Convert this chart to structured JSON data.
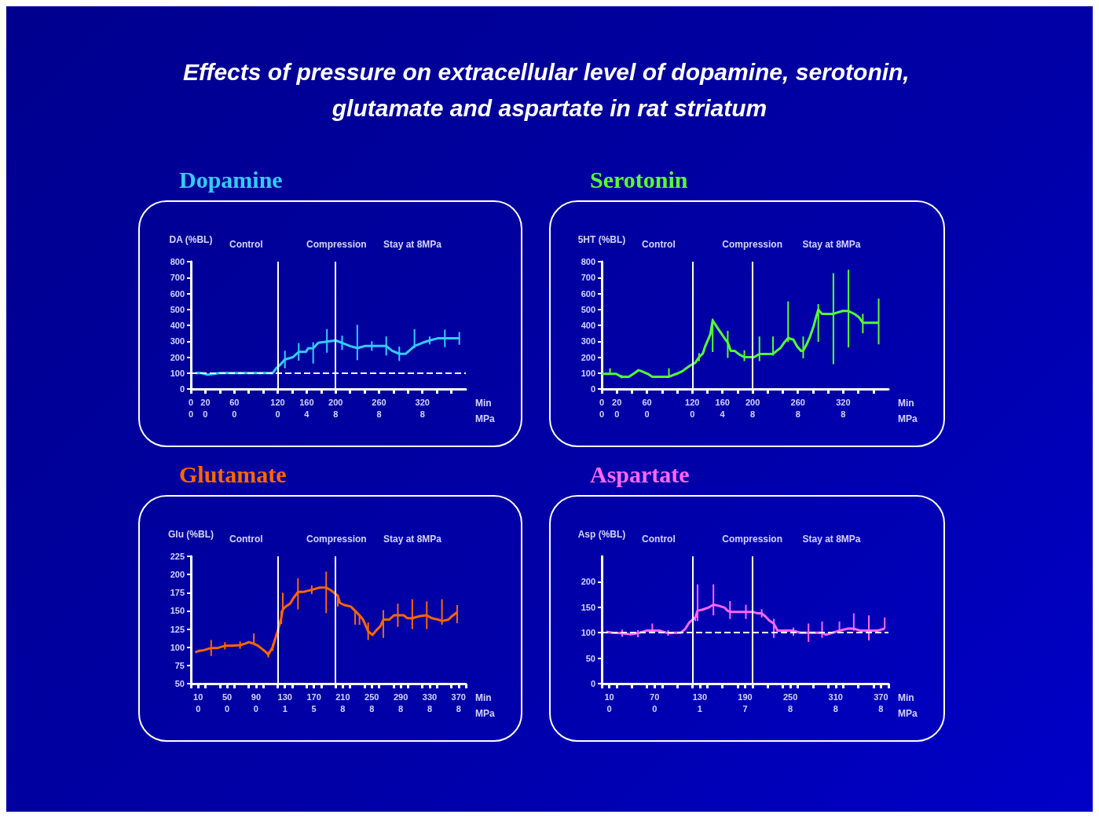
{
  "chart_data": [
    {
      "type": "other",
      "title": "Effects of pressure on extracellular level of dopamine, serotonin, glutamate and aspartate in rat striatum"
    },
    {
      "type": "line",
      "title": "Dopamine",
      "ylabel": "DA (%BL)",
      "xlabel": "Min\nMPa",
      "annotations": [
        "Control",
        "Compression",
        "Stay at 8MPa",
        "0",
        "0",
        "0",
        "0",
        "4",
        "8",
        "8",
        "8"
      ],
      "xlim": [
        0,
        380
      ],
      "xticks": [
        0,
        20,
        {
          "value": 40,
          "label": null
        },
        60,
        {
          "value": 80,
          "label": null
        },
        {
          "value": 100,
          "label": null
        },
        120,
        {
          "value": 140,
          "label": null
        },
        160,
        {
          "value": 180,
          "label": null
        },
        200,
        {
          "value": 220,
          "label": null
        },
        {
          "value": 240,
          "label": null
        },
        260,
        {
          "value": 280,
          "label": null
        },
        {
          "value": 300,
          "label": null
        },
        320,
        {
          "value": 340,
          "label": null
        },
        {
          "value": 360,
          "label": null
        }
      ],
      "ylim": [
        0,
        800
      ],
      "yticks": [
        0,
        100,
        200,
        300,
        400,
        500,
        600,
        700,
        800
      ],
      "ref_lines": [
        {
          "axis": "x",
          "value": 120,
          "color": "#ffffff"
        },
        {
          "axis": "x",
          "value": 200,
          "color": "#ffffff"
        },
        {
          "axis": "y",
          "value": 100,
          "color": "#ffffff",
          "line_style": "dashed"
        }
      ],
      "series": [
        {
          "color": "#33ccff",
          "x": [
            6,
            15,
            23,
            32,
            39,
            50,
            60,
            69,
            78,
            88,
            97,
            106,
            113,
            118,
            123,
            130,
            141,
            149,
            159,
            162,
            169,
            176,
            188,
            200,
            209,
            220,
            230,
            241,
            250,
            260,
            270,
            278,
            288,
            297,
            306,
            309,
            320,
            330,
            341,
            351,
            371
          ],
          "values": [
            100,
            100,
            90,
            95,
            100,
            100,
            100,
            100,
            100,
            100,
            100,
            100,
            100,
            130,
            150,
            185,
            200,
            233,
            233,
            255,
            255,
            290,
            297,
            305,
            290,
            270,
            257,
            270,
            270,
            270,
            270,
            240,
            221,
            221,
            257,
            270,
            290,
            305,
            318,
            318,
            318
          ],
          "errors": [
            null,
            null,
            null,
            null,
            null,
            null,
            null,
            null,
            null,
            null,
            null,
            null,
            null,
            null,
            null,
            55,
            null,
            55,
            null,
            null,
            [
              160,
              293
            ],
            null,
            [
              228,
              376
            ],
            null,
            45,
            null,
            [
              181,
              403
            ],
            null,
            30,
            null,
            60,
            null,
            45,
            null,
            null,
            [
              257,
              376
            ],
            null,
            25,
            null,
            55,
            40
          ]
        }
      ]
    },
    {
      "type": "line",
      "title": "Serotonin",
      "ylabel": "5HT (%BL)",
      "xlabel": "Min\nMPa",
      "annotations": [
        "Control",
        "Compression",
        "Stay at 8MPa",
        "0",
        "0",
        "0",
        "0",
        "4",
        "8",
        "8",
        "8"
      ],
      "xlim": [
        0,
        380
      ],
      "xticks": [
        0,
        20,
        {
          "value": 40,
          "label": null
        },
        60,
        {
          "value": 80,
          "label": null
        },
        {
          "value": 100,
          "label": null
        },
        120,
        {
          "value": 140,
          "label": null
        },
        160,
        {
          "value": 180,
          "label": null
        },
        200,
        {
          "value": 220,
          "label": null
        },
        {
          "value": 240,
          "label": null
        },
        260,
        {
          "value": 280,
          "label": null
        },
        {
          "value": 300,
          "label": null
        },
        320,
        {
          "value": 340,
          "label": null
        },
        {
          "value": 360,
          "label": null
        }
      ],
      "ylim": [
        0,
        800
      ],
      "yticks": [
        0,
        100,
        200,
        300,
        400,
        500,
        600,
        700,
        800
      ],
      "ref_lines": [
        {
          "axis": "x",
          "value": 120,
          "color": "#ffffff"
        },
        {
          "axis": "x",
          "value": 200,
          "color": "#ffffff"
        }
      ],
      "series": [
        {
          "color": "#55ff33",
          "x": [
            0,
            11,
            19,
            26,
            36,
            42,
            49,
            54,
            61,
            67,
            79,
            89,
            99,
            107,
            112,
            117,
            124,
            129,
            134,
            137,
            141,
            144,
            147,
            154,
            159,
            164,
            167,
            171,
            176,
            182,
            189,
            196,
            202,
            209,
            219,
            227,
            232,
            237,
            242,
            247,
            254,
            259,
            264,
            267,
            271,
            276,
            281,
            284,
            287,
            292,
            307,
            319,
            327,
            336,
            341,
            346,
            356,
            367
          ],
          "values": [
            95,
            95,
            95,
            77,
            77,
            95,
            118,
            109,
            95,
            77,
            77,
            77,
            95,
            112,
            130,
            147,
            165,
            200,
            223,
            267,
            310,
            345,
            430,
            380,
            345,
            310,
            293,
            240,
            240,
            218,
            200,
            200,
            200,
            220,
            220,
            220,
            240,
            258,
            293,
            320,
            310,
            267,
            240,
            240,
            275,
            328,
            398,
            450,
            498,
            472,
            472,
            490,
            490,
            468,
            450,
            416,
            416,
            416
          ],
          "errors": [
            null,
            [
              95,
              130
            ],
            null,
            10,
            null,
            null,
            null,
            null,
            null,
            null,
            null,
            [
              77,
              130
            ],
            null,
            null,
            null,
            null,
            null,
            25,
            null,
            null,
            null,
            null,
            [
              232,
              442
            ],
            null,
            null,
            null,
            [
              195,
              365
            ],
            null,
            null,
            null,
            [
              175,
              243
            ],
            null,
            null,
            [
              175,
              330
            ],
            null,
            [
              210,
              330
            ],
            null,
            null,
            null,
            [
              295,
              550
            ],
            null,
            null,
            null,
            [
              193,
              330
            ],
            null,
            null,
            null,
            null,
            [
              296,
              533
            ],
            null,
            [
              156,
              728
            ],
            null,
            [
              261,
              749
            ],
            null,
            null,
            [
              350,
              472
            ],
            null,
            [
              280,
              568
            ]
          ]
        }
      ]
    },
    {
      "type": "line",
      "title": "Glutamate",
      "ylabel": "Glu (%BL)",
      "xlabel": "Min\nMPa",
      "annotations": [
        "Control",
        "Compression",
        "Stay at 8MPa",
        "0",
        "0",
        "0",
        "1",
        "5",
        "8",
        "8",
        "8",
        "8",
        "8"
      ],
      "xlim": [
        0,
        380
      ],
      "xticks": [
        {
          "value": 0,
          "label": null
        },
        10,
        {
          "value": 20,
          "label": null
        },
        {
          "value": 40,
          "label": null
        },
        50,
        {
          "value": 60,
          "label": null
        },
        {
          "value": 80,
          "label": null
        },
        90,
        {
          "value": 100,
          "label": null
        },
        {
          "value": 120,
          "label": null
        },
        130,
        {
          "value": 140,
          "label": null
        },
        {
          "value": 160,
          "label": null
        },
        170,
        {
          "value": 180,
          "label": null
        },
        {
          "value": 200,
          "label": null
        },
        210,
        {
          "value": 220,
          "label": null
        },
        {
          "value": 240,
          "label": null
        },
        250,
        {
          "value": 260,
          "label": null
        },
        {
          "value": 280,
          "label": null
        },
        290,
        {
          "value": 300,
          "label": null
        },
        {
          "value": 320,
          "label": null
        },
        330,
        {
          "value": 340,
          "label": null
        },
        {
          "value": 360,
          "label": null
        },
        370,
        {
          "value": 380,
          "label": null
        }
      ],
      "ylim": [
        50,
        225
      ],
      "yticks": [
        50,
        75,
        100,
        125,
        150,
        175,
        200,
        225
      ],
      "ref_lines": [
        {
          "axis": "x",
          "value": 120,
          "color": "#ffffff"
        },
        {
          "axis": "x",
          "value": 200,
          "color": "#ffffff"
        }
      ],
      "series": [
        {
          "color": "#ff6600",
          "x": [
            6,
            11,
            18,
            28,
            37,
            47,
            57,
            68,
            75,
            80,
            87,
            93,
            98,
            103,
            107,
            113,
            121,
            125,
            127,
            131,
            137,
            142,
            148,
            155,
            167,
            178,
            187,
            194,
            203,
            206,
            212,
            221,
            227,
            233,
            238,
            245,
            251,
            256,
            262,
            266,
            274,
            281,
            286,
            294,
            299,
            306,
            317,
            326,
            333,
            342,
            347,
            356,
            361,
            368
          ],
          "values": [
            93,
            95,
            96,
            99,
            99,
            102,
            102,
            103,
            105,
            107,
            105,
            102,
            98,
            94,
            90,
            100,
            126,
            141,
            152,
            156,
            160,
            168,
            176,
            176,
            179,
            182,
            182,
            178,
            171,
            161,
            158,
            156,
            150,
            144,
            138,
            122,
            117,
            123,
            129,
            138,
            138,
            144,
            144,
            144,
            140,
            140,
            143,
            144,
            140,
            138,
            136,
            138,
            143,
            148
          ],
          "errors": [
            null,
            null,
            null,
            11,
            null,
            5,
            null,
            5,
            null,
            null,
            [
              105,
              119
            ],
            null,
            null,
            null,
            4,
            5,
            7,
            9,
            [
              152,
              175
            ],
            null,
            null,
            null,
            [
              152,
              195
            ],
            null,
            6,
            null,
            [
              147,
              204
            ],
            null,
            [
              156,
              172
            ],
            null,
            null,
            null,
            [
              131,
              150
            ],
            [
              131,
              144
            ],
            null,
            12,
            null,
            null,
            null,
            [
              113,
              151
            ],
            null,
            null,
            16,
            null,
            null,
            [
              125,
              166
            ],
            null,
            [
              125,
              163
            ],
            null,
            null,
            [
              131,
              166
            ],
            null,
            null,
            [
              133,
              158
            ]
          ]
        }
      ]
    },
    {
      "type": "line",
      "title": "Aspartate",
      "ylabel": "Asp (%BL)",
      "xlabel": "Min\nMPa",
      "annotations": [
        "Control",
        "Compression",
        "Stay at 8MPa",
        "0",
        "0",
        "1",
        "7",
        "8",
        "8",
        "8"
      ],
      "xlim": [
        0,
        380
      ],
      "xticks": [
        {
          "value": 0,
          "label": null
        },
        10,
        {
          "value": 20,
          "label": null
        },
        {
          "value": 40,
          "label": null
        },
        {
          "value": 60,
          "label": null
        },
        70,
        {
          "value": 80,
          "label": null
        },
        {
          "value": 100,
          "label": null
        },
        {
          "value": 120,
          "label": null
        },
        130,
        {
          "value": 140,
          "label": null
        },
        {
          "value": 160,
          "label": null
        },
        {
          "value": 180,
          "label": null
        },
        190,
        {
          "value": 200,
          "label": null
        },
        {
          "value": 220,
          "label": null
        },
        {
          "value": 240,
          "label": null
        },
        250,
        {
          "value": 260,
          "label": null
        },
        {
          "value": 280,
          "label": null
        },
        {
          "value": 300,
          "label": null
        },
        310,
        {
          "value": 320,
          "label": null
        },
        {
          "value": 340,
          "label": null
        },
        {
          "value": 360,
          "label": null
        },
        370,
        {
          "value": 380,
          "label": null
        }
      ],
      "ylim": [
        0,
        250
      ],
      "yticks": [
        0,
        50,
        100,
        150,
        200
      ],
      "ref_lines": [
        {
          "axis": "x",
          "value": 120,
          "color": "#ffffff"
        },
        {
          "axis": "x",
          "value": 200,
          "color": "#ffffff"
        },
        {
          "axis": "y",
          "value": 100,
          "color": "#ffffff",
          "line_style": "dashed"
        }
      ],
      "series": [
        {
          "color": "#ff66ff",
          "x": [
            6,
            14,
            27,
            38,
            48,
            59,
            67,
            77,
            88,
            98,
            105,
            111,
            116,
            124,
            127,
            133,
            141,
            148,
            155,
            163,
            167,
            170,
            180,
            191,
            200,
            207,
            212,
            217,
            222,
            228,
            233,
            243,
            254,
            263,
            274,
            285,
            292,
            297,
            315,
            326,
            334,
            343,
            354,
            365,
            375
          ],
          "values": [
            102,
            100,
            99,
            97,
            99,
            104,
            104,
            104,
            99,
            100,
            100,
            108,
            120,
            130,
            143,
            145,
            149,
            155,
            153,
            149,
            143,
            141,
            141,
            141,
            141,
            138,
            138,
            132,
            124,
            118,
            104,
            104,
            104,
            100,
            100,
            100,
            100,
            96,
            104,
            108,
            108,
            104,
            104,
            104,
            108
          ],
          "errors": [
            null,
            null,
            7,
            null,
            [
              91,
              105
            ],
            null,
            [
              99,
              118
            ],
            null,
            [
              94,
              105
            ],
            null,
            null,
            null,
            null,
            [
              123,
              133
            ],
            [
              123,
              195
            ],
            null,
            null,
            [
              134,
              195
            ],
            null,
            null,
            null,
            [
              127,
              162
            ],
            null,
            14,
            null,
            null,
            [
              130,
              146
            ],
            null,
            null,
            [
              90,
              127
            ],
            null,
            null,
            [
              94,
              110
            ],
            null,
            18,
            null,
            [
              90,
              122
            ],
            null,
            [
              104,
              122
            ],
            null,
            [
              104,
              138
            ],
            null,
            [
              85,
              134
            ],
            null,
            [
              108,
              130
            ]
          ]
        }
      ]
    }
  ]
}
